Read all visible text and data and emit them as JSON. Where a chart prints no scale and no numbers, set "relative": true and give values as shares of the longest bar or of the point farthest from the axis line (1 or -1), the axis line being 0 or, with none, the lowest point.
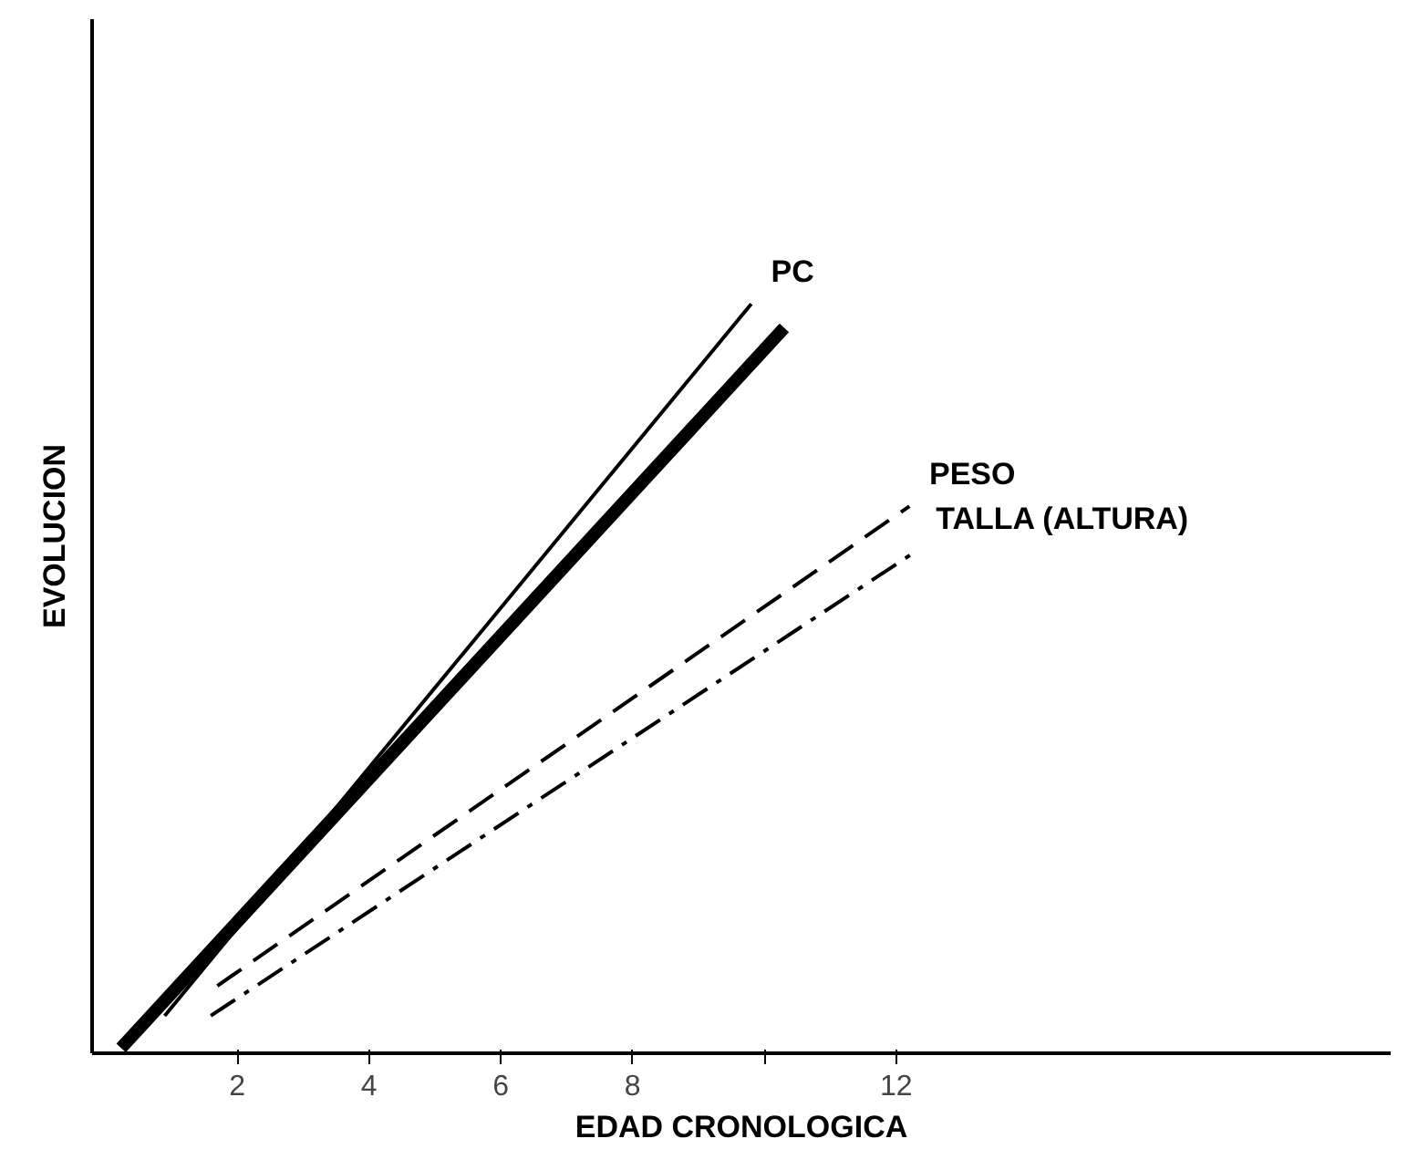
{
  "chart_data": {
    "type": "line",
    "relative": true,
    "xlabel": "EDAD CRONOLOGICA",
    "ylabel": "EVOLUCION",
    "xlim": [
      -0.2,
      19.5
    ],
    "xticks": [
      2,
      4,
      6,
      8,
      {
        "value": 10,
        "label": null
      },
      12
    ],
    "grid": false,
    "marker": "none",
    "series": [
      {
        "color": "#000000",
        "x": [
          0.24,
          10.3
        ],
        "values": [
          0.007,
          0.968
        ],
        "line_style": "solid"
      },
      {
        "name": "PC",
        "color": "#000000",
        "x": [
          0.9,
          9.8
        ],
        "values": [
          0.05,
          1.0
        ],
        "line_style": "solid"
      },
      {
        "name": "PESO",
        "color": "#000000",
        "x": [
          1.7,
          12.2
        ],
        "values": [
          0.09,
          0.73
        ],
        "line_style": "dashed"
      },
      {
        "name": "TALLA (ALTURA)",
        "color": "#000000",
        "x": [
          1.6,
          12.3
        ],
        "values": [
          0.05,
          0.67
        ],
        "line_style": "dashdot"
      }
    ]
  }
}
